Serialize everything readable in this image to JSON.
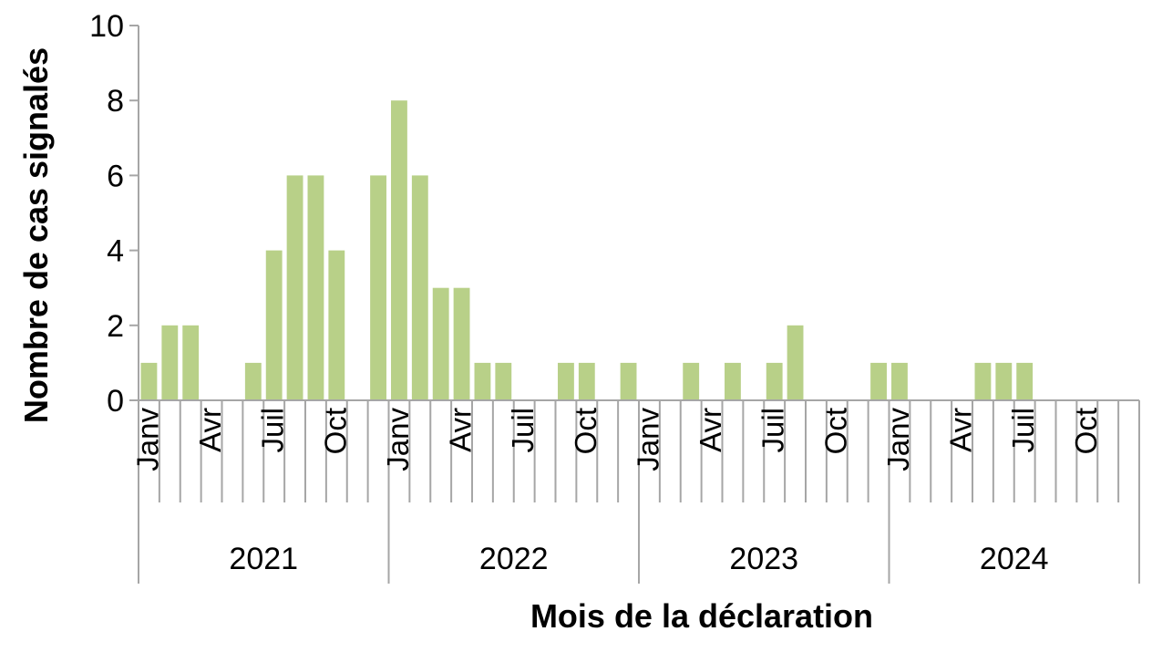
{
  "chart_data": {
    "type": "bar",
    "xlabel": "Mois de la déclaration",
    "ylabel": "Nombre de cas signalés",
    "ylim": [
      0,
      10
    ],
    "yticks": [
      0,
      2,
      4,
      6,
      8,
      10
    ],
    "grid": false,
    "legend": "none",
    "bar_color": "#b8d088",
    "axis_color": "#a6a6a6",
    "years": [
      "2021",
      "2022",
      "2023",
      "2024"
    ],
    "months_per_year": 12,
    "month_labels": [
      {
        "index": 0,
        "label": "Janv"
      },
      {
        "index": 3,
        "label": "Avr"
      },
      {
        "index": 6,
        "label": "Juil"
      },
      {
        "index": 9,
        "label": "Oct"
      }
    ],
    "values": [
      1,
      2,
      2,
      0,
      0,
      1,
      4,
      6,
      6,
      4,
      0,
      6,
      8,
      6,
      3,
      3,
      1,
      1,
      0,
      0,
      1,
      1,
      0,
      1,
      0,
      0,
      1,
      0,
      1,
      0,
      1,
      2,
      0,
      0,
      0,
      1,
      1,
      0,
      0,
      0,
      1,
      1,
      1,
      0,
      0,
      0
    ]
  }
}
